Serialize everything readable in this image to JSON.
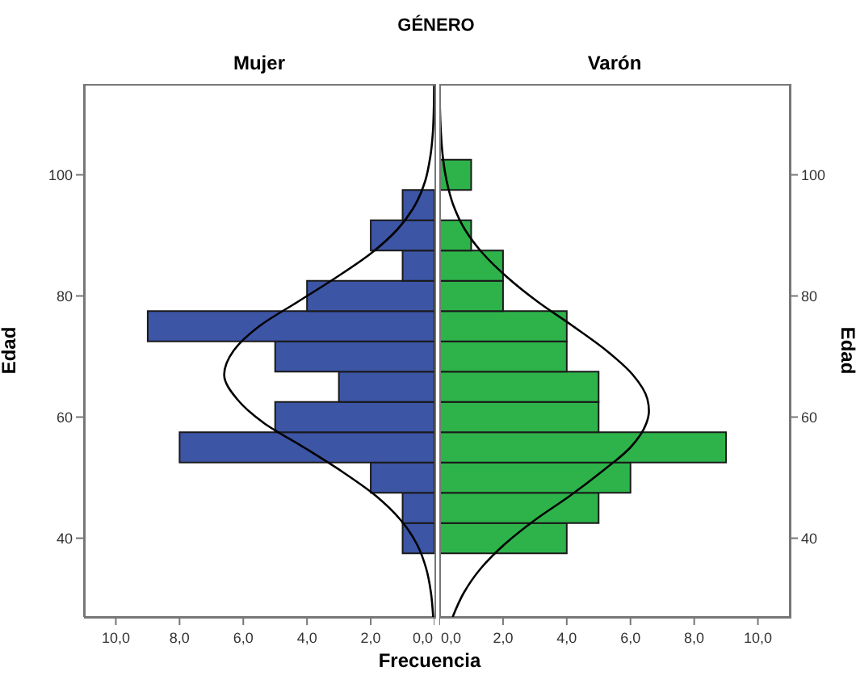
{
  "chart_data": [
    {
      "type": "histogram",
      "orientation": "horizontal",
      "title": "Mujer",
      "annotations": [
        "GÉNERO"
      ],
      "xlabel": "Frecuencia",
      "ylabel": "Edad",
      "bins": [
        37.5,
        42.5,
        47.5,
        52.5,
        57.5,
        62.5,
        67.5,
        72.5,
        77.5,
        82.5,
        87.5,
        92.5,
        97.5,
        102.5
      ],
      "series": [
        {
          "type": "histogram",
          "color": "#3c55a5",
          "values": [
            1,
            1,
            2,
            8,
            5,
            3,
            5,
            9,
            4,
            1,
            2,
            1,
            0
          ]
        },
        {
          "type": "line",
          "color": "#000000",
          "x": [
            27,
            31,
            35,
            39,
            43,
            47,
            51,
            55,
            59,
            63,
            67,
            71,
            75,
            79,
            83,
            87,
            91,
            95,
            99,
            103,
            107,
            111,
            115
          ],
          "values": [
            0.04,
            0.11,
            0.26,
            0.55,
            1.06,
            1.84,
            2.9,
            4.1,
            5.35,
            6.2,
            6.6,
            6.3,
            5.5,
            4.3,
            3.1,
            2.0,
            1.16,
            0.61,
            0.29,
            0.13,
            0.05,
            0.02,
            0.01
          ]
        }
      ],
      "xlim": [
        11,
        0
      ],
      "xticks": [
        {
          "value": 10,
          "label": "10,0"
        },
        {
          "value": 8,
          "label": "8,0"
        },
        {
          "value": 6,
          "label": "6,0"
        },
        {
          "value": 4,
          "label": "4,0"
        },
        {
          "value": 2,
          "label": "2,0"
        },
        {
          "value": 0,
          "label": "0,0"
        }
      ],
      "ylim": [
        27,
        115
      ],
      "yticks": [
        40,
        60,
        80,
        100
      ],
      "grid": false,
      "marker": "none"
    },
    {
      "type": "histogram",
      "orientation": "horizontal",
      "title": "Varón",
      "ylabel": "Edad",
      "bins": [
        37.5,
        42.5,
        47.5,
        52.5,
        57.5,
        62.5,
        67.5,
        72.5,
        77.5,
        82.5,
        87.5,
        92.5,
        97.5,
        102.5
      ],
      "series": [
        {
          "type": "histogram",
          "color": "#2db34a",
          "values": [
            4,
            5,
            6,
            9,
            5,
            5,
            4,
            4,
            2,
            2,
            1,
            0,
            1
          ]
        },
        {
          "type": "line",
          "color": "#000000",
          "x": [
            27,
            31,
            35,
            39,
            43,
            47,
            51,
            55,
            59,
            61,
            63,
            67,
            71,
            75,
            79,
            83,
            87,
            91,
            95,
            99,
            103,
            107,
            111,
            115
          ],
          "values": [
            0.42,
            0.77,
            1.3,
            2.05,
            3.0,
            4.1,
            5.1,
            6.0,
            6.5,
            6.58,
            6.53,
            6.07,
            5.24,
            4.2,
            3.1,
            2.15,
            1.37,
            0.8,
            0.44,
            0.23,
            0.11,
            0.05,
            0.02,
            0.01
          ]
        }
      ],
      "xlim": [
        0,
        11
      ],
      "xticks": [
        {
          "value": 0,
          "label": "0,0"
        },
        {
          "value": 2,
          "label": "2,0"
        },
        {
          "value": 4,
          "label": "4,0"
        },
        {
          "value": 6,
          "label": "6,0"
        },
        {
          "value": 8,
          "label": "8,0"
        },
        {
          "value": 10,
          "label": "10,0"
        }
      ],
      "ylim": [
        27,
        115
      ],
      "yticks": [
        40,
        60,
        80,
        100
      ],
      "grid": false,
      "marker": "none"
    }
  ]
}
